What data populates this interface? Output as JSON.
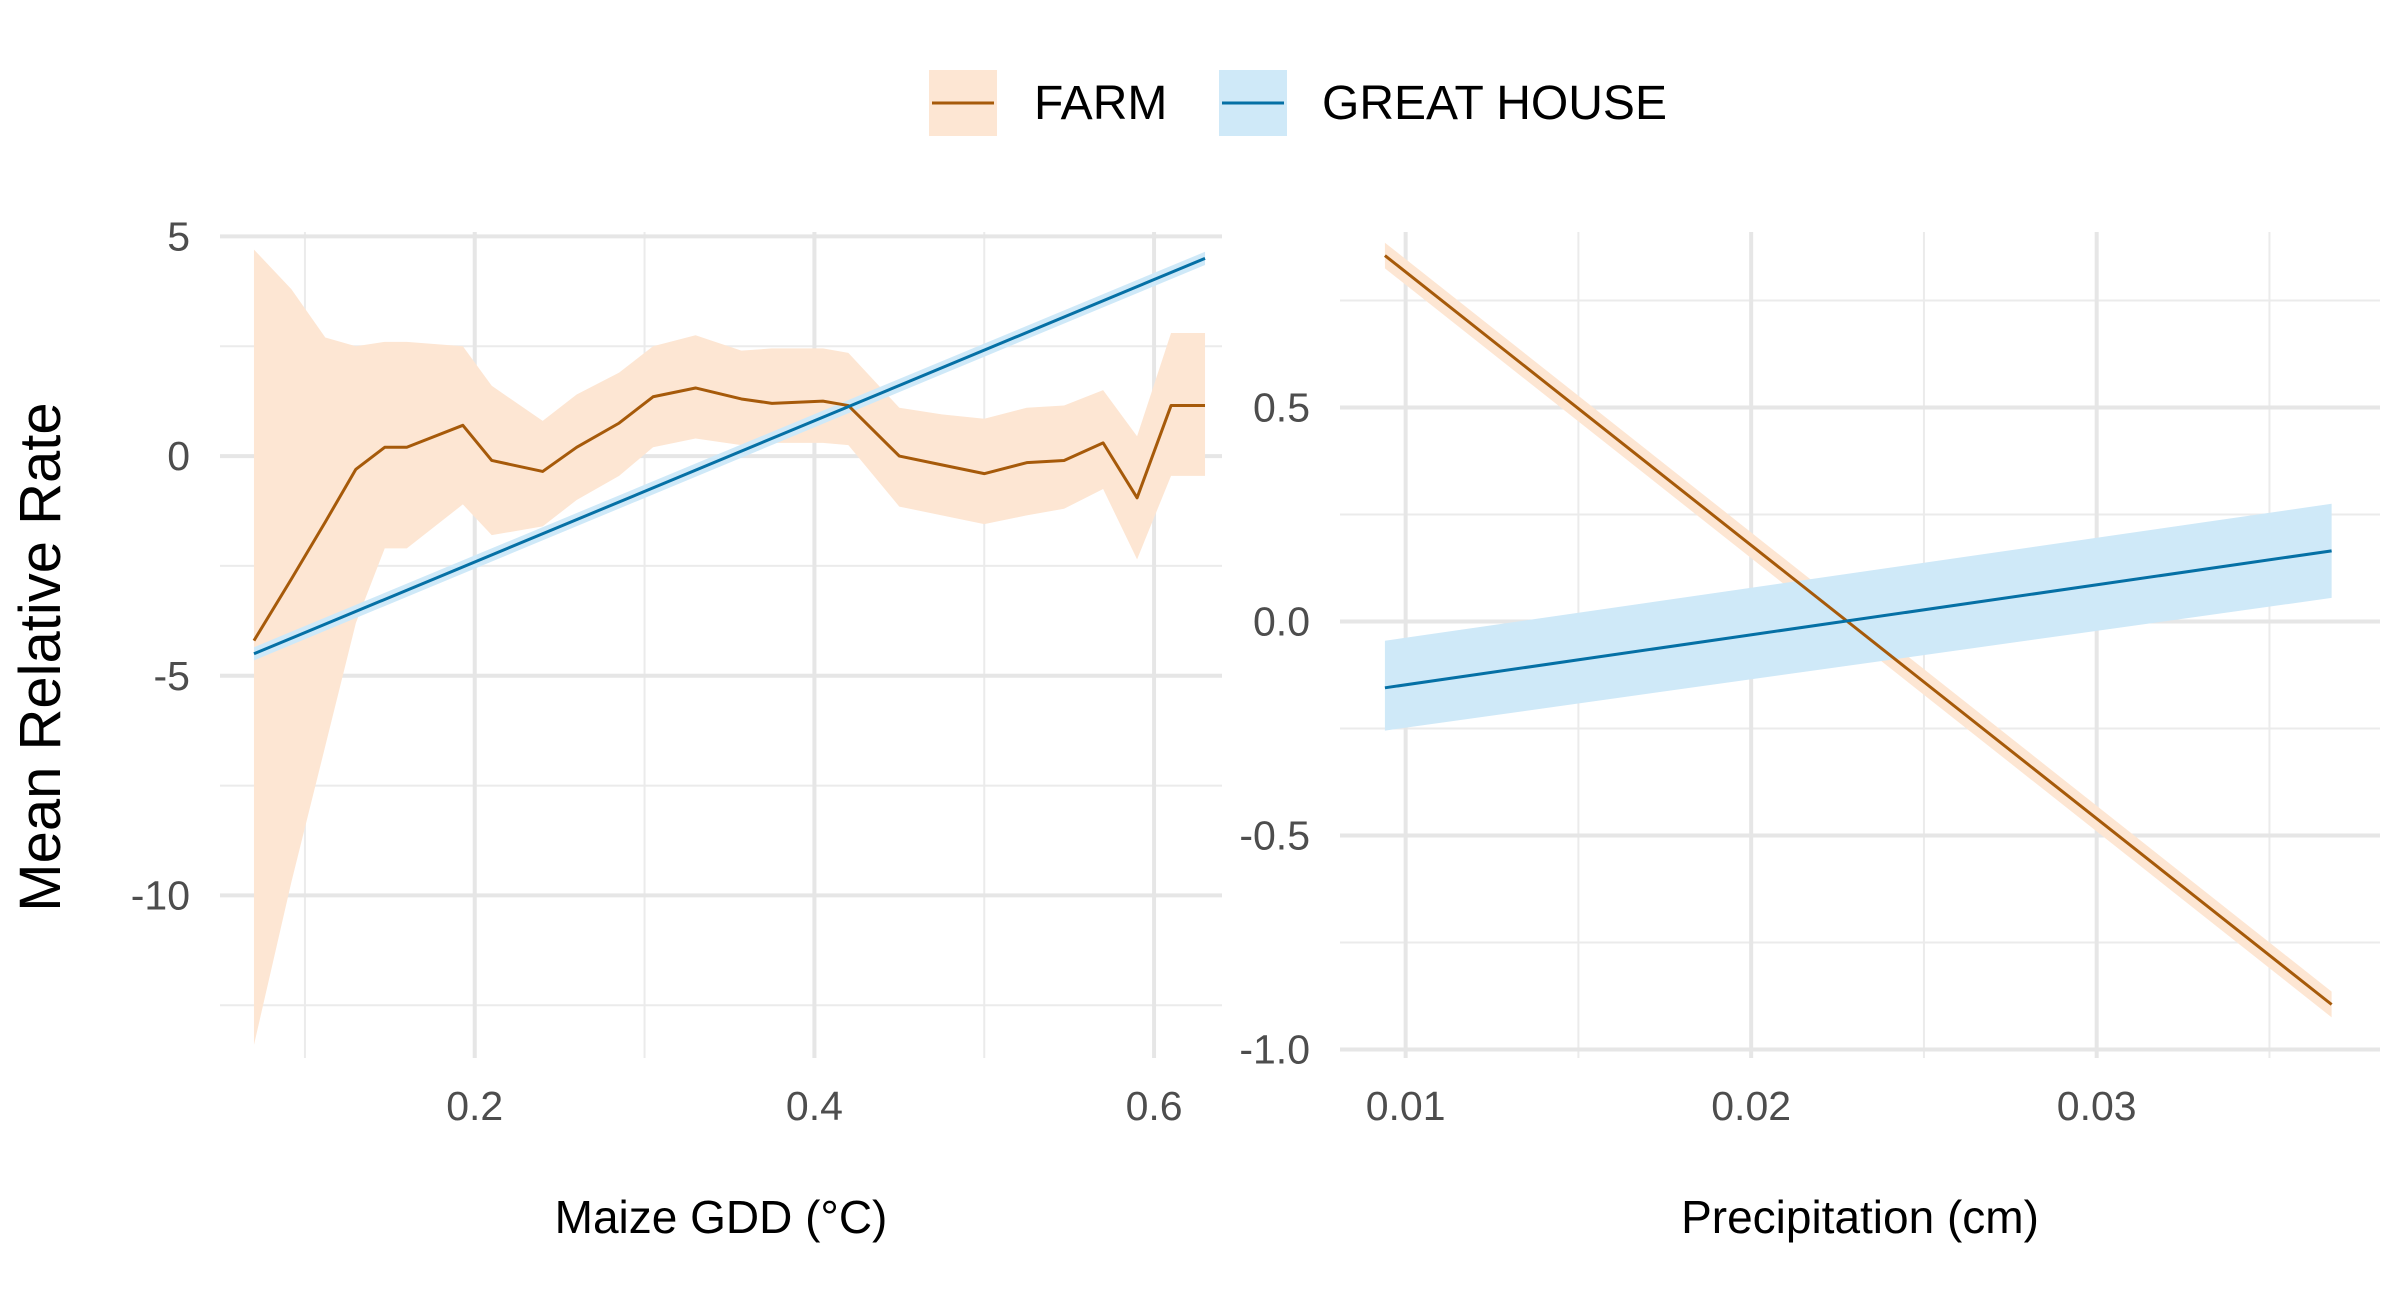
{
  "chart_data": [
    {
      "type": "line",
      "title": "",
      "xlabel": "Maize GDD (°C)",
      "ylabel": "Mean Relative Rate",
      "xlim": [
        0.05,
        0.64
      ],
      "ylim": [
        -13.7,
        5.1
      ],
      "x_ticks": [
        0.2,
        0.4,
        0.6
      ],
      "x_tick_labels": [
        "0.2",
        "0.4",
        "0.6"
      ],
      "x_minor_ticks": [
        0.1,
        0.3,
        0.5
      ],
      "y_ticks": [
        5,
        0,
        -5,
        -10
      ],
      "y_tick_labels": [
        "5",
        "0",
        "-5",
        "-10"
      ],
      "y_minor_ticks": [
        2.5,
        -2.5,
        -7.5,
        -12.5
      ],
      "grid": true,
      "series": [
        {
          "name": "FARM",
          "color": "#a65a0a",
          "band_color": "#fde6d3",
          "x": [
            0.07,
            0.092,
            0.112,
            0.13,
            0.147,
            0.16,
            0.193,
            0.21,
            0.24,
            0.26,
            0.285,
            0.305,
            0.33,
            0.357,
            0.375,
            0.405,
            0.42,
            0.45,
            0.475,
            0.5,
            0.525,
            0.547,
            0.57,
            0.59,
            0.61,
            0.63
          ],
          "y": [
            -4.2,
            -2.8,
            -1.5,
            -0.3,
            0.2,
            0.2,
            0.7,
            -0.1,
            -0.35,
            0.2,
            0.75,
            1.35,
            1.55,
            1.3,
            1.2,
            1.25,
            1.15,
            0.0,
            -0.2,
            -0.4,
            -0.15,
            -0.1,
            0.3,
            -0.95,
            1.15,
            1.15
          ],
          "lower": [
            -13.4,
            -9.7,
            -6.6,
            -3.8,
            -2.1,
            -2.1,
            -1.1,
            -1.8,
            -1.6,
            -1.0,
            -0.45,
            0.2,
            0.4,
            0.25,
            0.3,
            0.3,
            0.25,
            -1.15,
            -1.35,
            -1.55,
            -1.35,
            -1.2,
            -0.75,
            -2.35,
            -0.45,
            -0.45
          ],
          "upper": [
            4.7,
            3.8,
            2.7,
            2.5,
            2.6,
            2.6,
            2.5,
            1.6,
            0.8,
            1.4,
            1.9,
            2.5,
            2.75,
            2.4,
            2.45,
            2.45,
            2.35,
            1.1,
            0.95,
            0.85,
            1.1,
            1.15,
            1.5,
            0.45,
            2.8,
            2.8
          ]
        },
        {
          "name": "GREAT HOUSE",
          "color": "#0570a5",
          "band_color": "#cfe9f8",
          "x": [
            0.07,
            0.63
          ],
          "y": [
            -4.5,
            4.5
          ],
          "lower": [
            -4.65,
            4.35
          ],
          "upper": [
            -4.35,
            4.65
          ]
        }
      ],
      "legend": "top"
    },
    {
      "type": "line",
      "title": "",
      "xlabel": "Precipitation (cm)",
      "ylabel": "",
      "xlim": [
        0.0081,
        0.0382
      ],
      "ylim": [
        -1.02,
        0.91
      ],
      "x_ticks": [
        0.01,
        0.02,
        0.03
      ],
      "x_tick_labels": [
        "0.01",
        "0.02",
        "0.03"
      ],
      "x_minor_ticks": [
        0.015,
        0.025,
        0.035
      ],
      "y_ticks": [
        0.5,
        0.0,
        -0.5,
        -1.0
      ],
      "y_tick_labels": [
        "0.5",
        "0.0",
        "-0.5",
        "-1.0"
      ],
      "y_minor_ticks": [
        0.75,
        0.25,
        -0.25,
        -0.75
      ],
      "grid": true,
      "series": [
        {
          "name": "FARM",
          "color": "#a65a0a",
          "band_color": "#fde6d3",
          "x": [
            0.0094,
            0.0368
          ],
          "y": [
            0.855,
            -0.895
          ],
          "lower": [
            0.825,
            -0.925
          ],
          "upper": [
            0.885,
            -0.865
          ]
        },
        {
          "name": "GREAT HOUSE",
          "color": "#0570a5",
          "band_color": "#cfe9f8",
          "x": [
            0.0094,
            0.0368
          ],
          "y": [
            -0.155,
            0.165
          ],
          "lower": [
            -0.255,
            0.055
          ],
          "upper": [
            -0.045,
            0.275
          ]
        }
      ],
      "legend": "top"
    }
  ],
  "legend": {
    "items": [
      {
        "label": "FARM",
        "color": "#a65a0a",
        "band_color": "#fde6d3"
      },
      {
        "label": "GREAT HOUSE",
        "color": "#0570a5",
        "band_color": "#cfe9f8"
      }
    ]
  },
  "shared_ylabel": "Mean Relative Rate"
}
